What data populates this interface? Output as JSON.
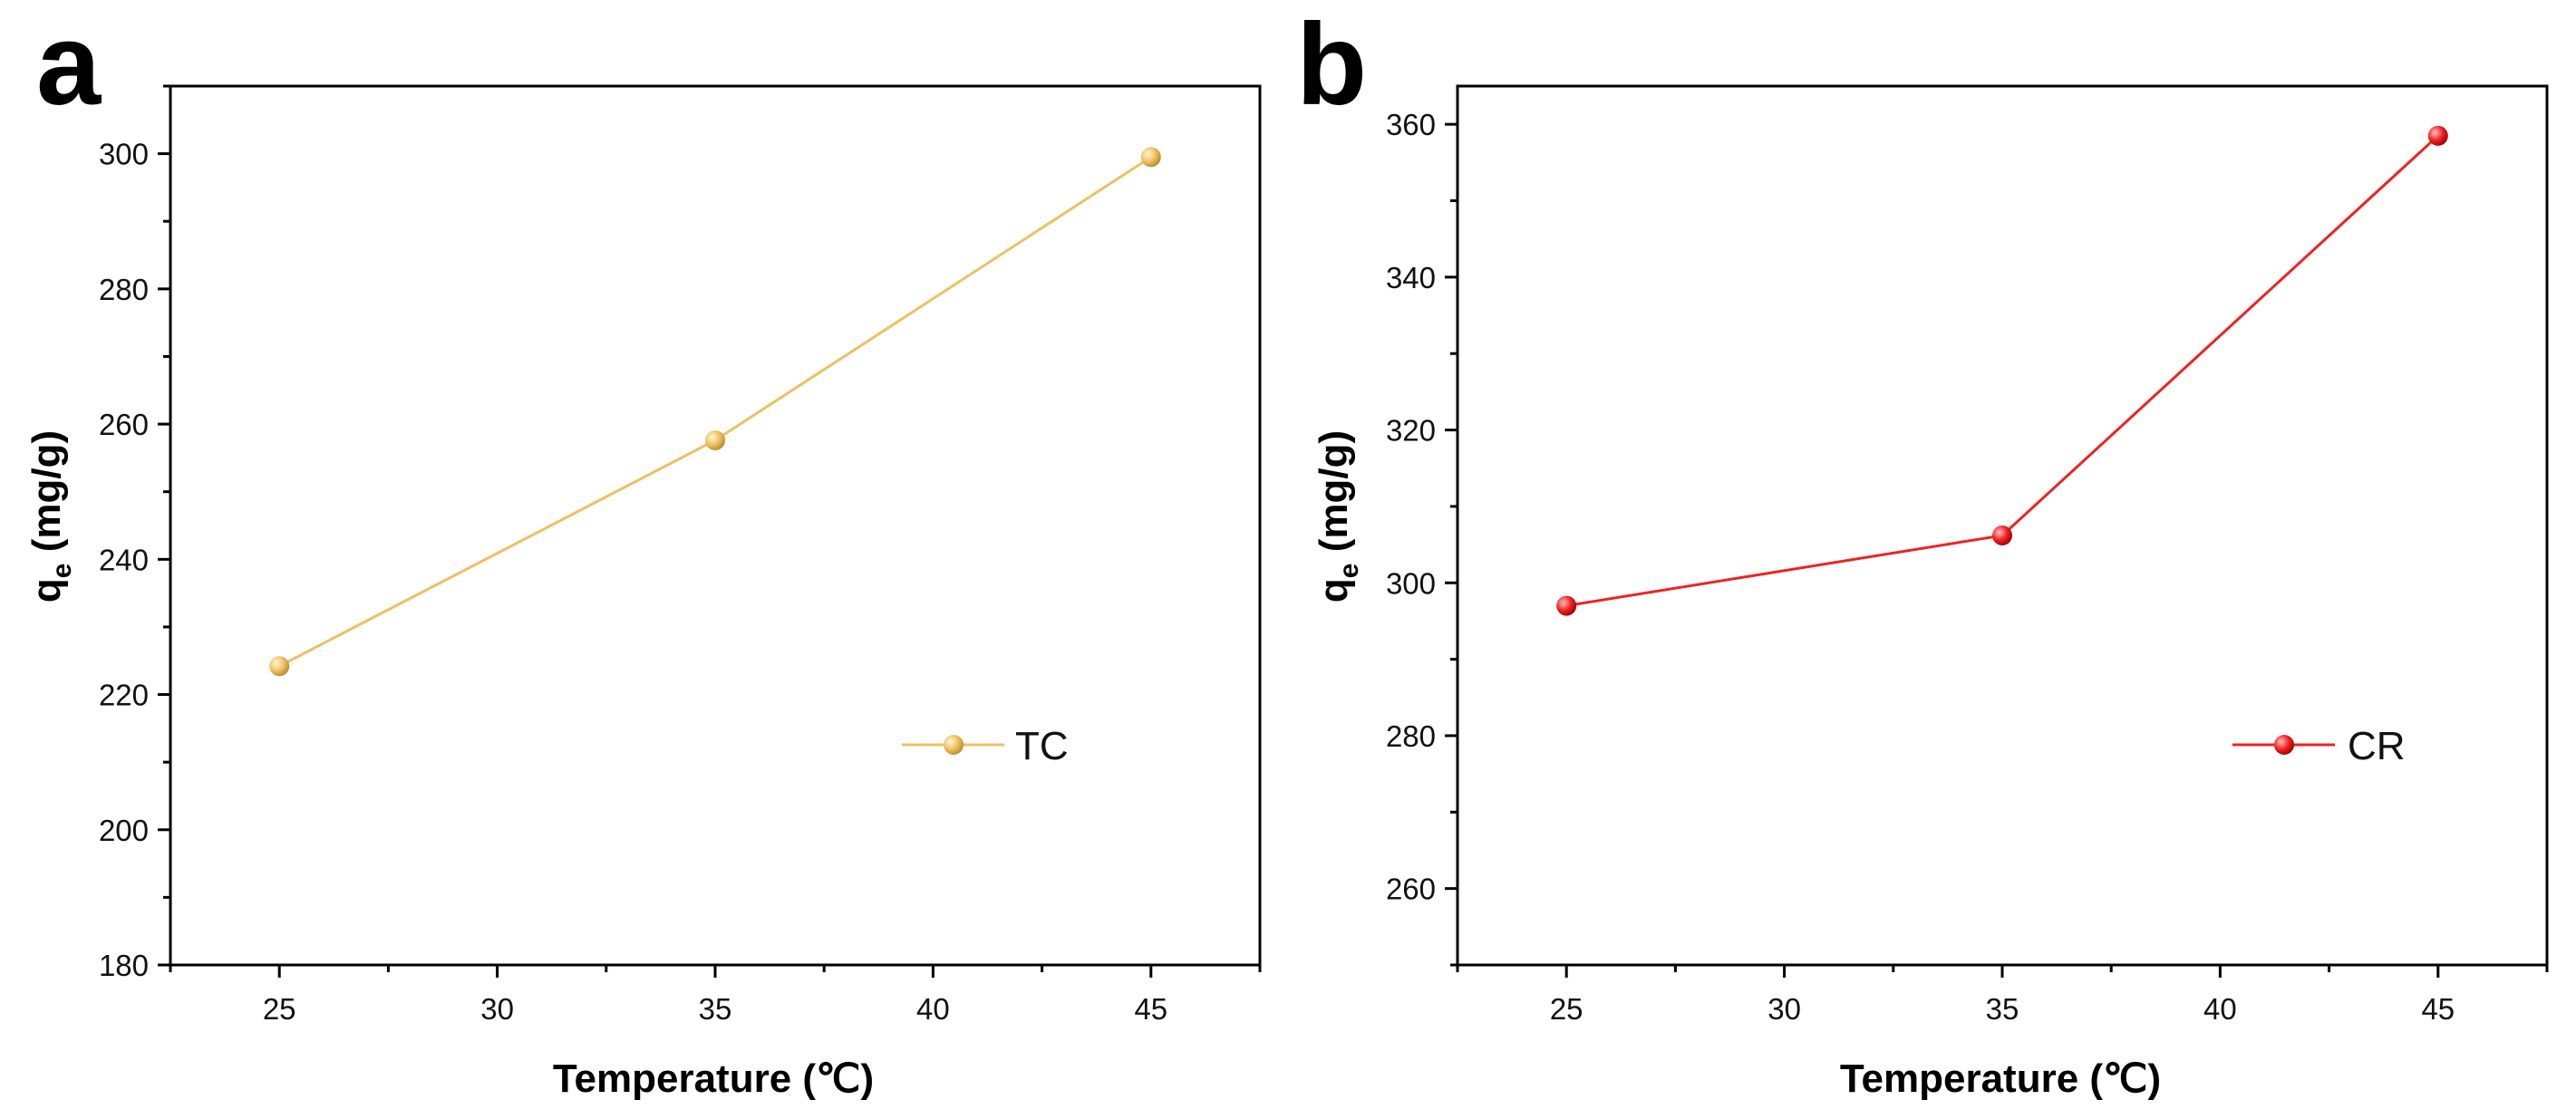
{
  "chart_data": [
    {
      "type": "line",
      "panel_label": "a",
      "x": [
        25,
        35,
        45
      ],
      "series": [
        {
          "name": "TC",
          "values": [
            224.2,
            257.6,
            299.5
          ],
          "color": "#f0c060"
        }
      ],
      "xlabel": "Temperature (℃)",
      "ylabel_main": "q",
      "ylabel_sub": "e",
      "ylabel_unit": " (mg/g)",
      "xlim": [
        22.5,
        47.5
      ],
      "ylim": [
        180,
        310
      ],
      "xticks": [
        25,
        30,
        35,
        40,
        45
      ],
      "yticks": [
        180,
        200,
        220,
        240,
        260,
        280,
        300
      ],
      "legend_position": "lower-right",
      "grid": false
    },
    {
      "type": "line",
      "panel_label": "b",
      "x": [
        25,
        35,
        45
      ],
      "series": [
        {
          "name": "CR",
          "values": [
            297.0,
            306.2,
            358.5
          ],
          "color": "#ee2222"
        }
      ],
      "xlabel": "Temperature (℃)",
      "ylabel_main": "q",
      "ylabel_sub": "e",
      "ylabel_unit": " (mg/g)",
      "xlim": [
        22.5,
        47.5
      ],
      "ylim": [
        250,
        365
      ],
      "xticks": [
        25,
        30,
        35,
        40,
        45
      ],
      "yticks": [
        260,
        280,
        300,
        320,
        340,
        360
      ],
      "legend_position": "lower-right",
      "grid": false
    }
  ]
}
